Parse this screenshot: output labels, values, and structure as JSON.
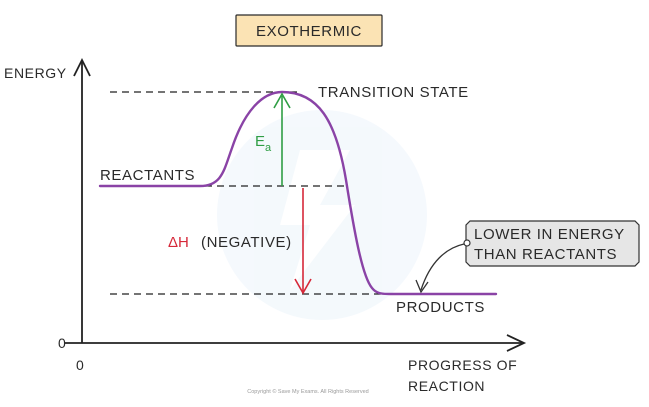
{
  "title": "EXOTHERMIC",
  "axes": {
    "y_label": "ENERGY",
    "x_label_line1": "PROGRESS  OF",
    "x_label_line2": "REACTION",
    "origin_y": "0",
    "origin_x": "0"
  },
  "labels": {
    "transition_state": "TRANSITION  STATE",
    "reactants": "REACTANTS",
    "products": "PRODUCTS",
    "activation_energy_main": "E",
    "activation_energy_sub": "a",
    "enthalpy_symbol": "ΔH",
    "enthalpy_note": "(NEGATIVE)"
  },
  "callout": {
    "line1": "LOWER  IN  ENERGY",
    "line2": "THAN  REACTANTS"
  },
  "footer": {
    "copyright": "Copyright © Save My Exams. All Rights Reserved"
  },
  "colors": {
    "curve": "#8a43a6",
    "activation_arrow": "#2f9e44",
    "enthalpy_arrow": "#d62839",
    "title_fill": "#fbe3b4",
    "title_border": "#2a2a2a",
    "callout_fill": "#e6e6e6",
    "axis": "#222222"
  }
}
